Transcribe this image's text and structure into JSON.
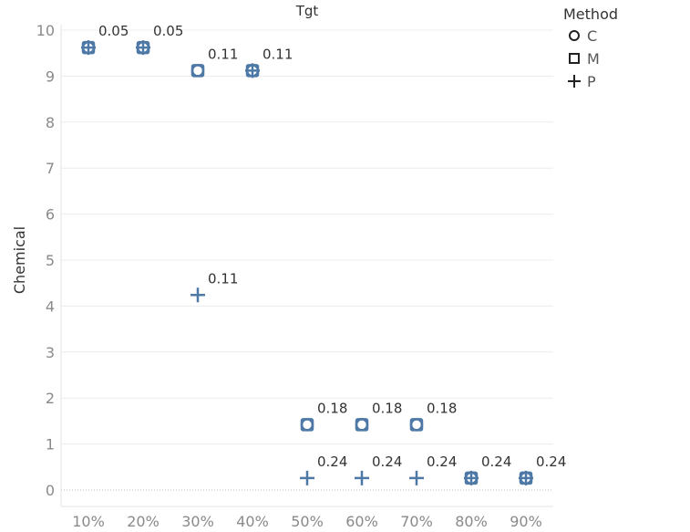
{
  "chart_data": {
    "type": "scatter",
    "title": "Tgt",
    "xlabel": "",
    "ylabel": "Chemical",
    "categories": [
      "10%",
      "20%",
      "30%",
      "40%",
      "50%",
      "60%",
      "70%",
      "80%",
      "90%"
    ],
    "ylim": [
      0,
      10
    ],
    "yticks": [
      0,
      1,
      2,
      3,
      4,
      5,
      6,
      7,
      8,
      9,
      10
    ],
    "grid": true,
    "mark_color": "#4e79a7",
    "legend": {
      "title": "Method",
      "placement": "top-right",
      "entries": [
        {
          "label": "C",
          "shape": "circle"
        },
        {
          "label": "M",
          "shape": "square"
        },
        {
          "label": "P",
          "shape": "plus"
        }
      ]
    },
    "series": [
      {
        "name": "C",
        "shape": "circle",
        "points": [
          {
            "x": "10%",
            "y": 9.62
          },
          {
            "x": "20%",
            "y": 9.62
          },
          {
            "x": "30%",
            "y": 9.12
          },
          {
            "x": "40%",
            "y": 9.12
          },
          {
            "x": "50%",
            "y": 1.42
          },
          {
            "x": "60%",
            "y": 1.42
          },
          {
            "x": "70%",
            "y": 1.42
          },
          {
            "x": "80%",
            "y": 0.26
          },
          {
            "x": "90%",
            "y": 0.26
          }
        ]
      },
      {
        "name": "M",
        "shape": "square",
        "points": [
          {
            "x": "10%",
            "y": 9.62
          },
          {
            "x": "20%",
            "y": 9.62
          },
          {
            "x": "30%",
            "y": 9.12
          },
          {
            "x": "40%",
            "y": 9.12
          },
          {
            "x": "50%",
            "y": 1.42
          },
          {
            "x": "60%",
            "y": 1.42
          },
          {
            "x": "70%",
            "y": 1.42
          },
          {
            "x": "80%",
            "y": 0.26
          },
          {
            "x": "90%",
            "y": 0.26
          }
        ]
      },
      {
        "name": "P",
        "shape": "plus",
        "points": [
          {
            "x": "10%",
            "y": 9.62
          },
          {
            "x": "20%",
            "y": 9.62
          },
          {
            "x": "30%",
            "y": 4.24
          },
          {
            "x": "40%",
            "y": 9.12
          },
          {
            "x": "50%",
            "y": 0.26
          },
          {
            "x": "60%",
            "y": 0.26
          },
          {
            "x": "70%",
            "y": 0.26
          },
          {
            "x": "80%",
            "y": 0.26
          },
          {
            "x": "90%",
            "y": 0.26
          }
        ]
      }
    ],
    "annotations": [
      {
        "x": "10%",
        "y": 9.62,
        "text": "0.05"
      },
      {
        "x": "20%",
        "y": 9.62,
        "text": "0.05"
      },
      {
        "x": "30%",
        "y": 9.12,
        "text": "0.11"
      },
      {
        "x": "40%",
        "y": 9.12,
        "text": "0.11"
      },
      {
        "x": "30%",
        "y": 4.24,
        "text": "0.11"
      },
      {
        "x": "50%",
        "y": 1.42,
        "text": "0.18"
      },
      {
        "x": "60%",
        "y": 1.42,
        "text": "0.18"
      },
      {
        "x": "70%",
        "y": 1.42,
        "text": "0.18"
      },
      {
        "x": "50%",
        "y": 0.26,
        "text": "0.24"
      },
      {
        "x": "60%",
        "y": 0.26,
        "text": "0.24"
      },
      {
        "x": "70%",
        "y": 0.26,
        "text": "0.24"
      },
      {
        "x": "80%",
        "y": 0.26,
        "text": "0.24"
      },
      {
        "x": "90%",
        "y": 0.26,
        "text": "0.24"
      }
    ]
  }
}
